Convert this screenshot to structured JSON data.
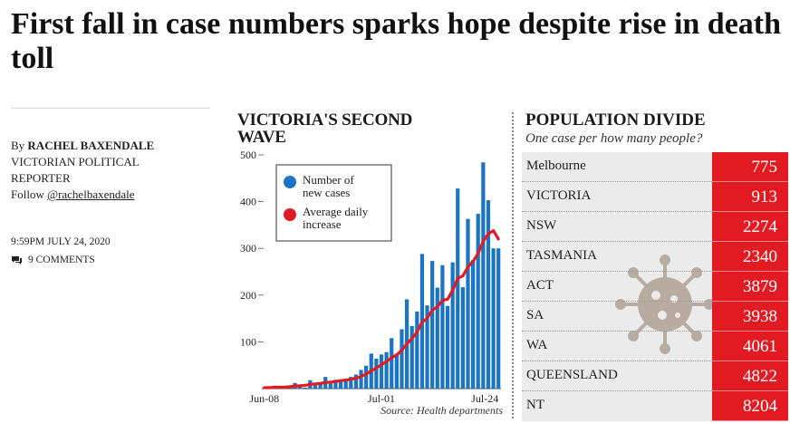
{
  "article": {
    "headline": "First fall in case numbers sparks hope despite rise in death toll",
    "by_prefix": "By",
    "author": "RACHEL BAXENDALE",
    "role": "VICTORIAN POLITICAL REPORTER",
    "follow_prefix": "Follow",
    "handle": "@rachelbaxendale",
    "timestamp": "9:59PM JULY 24, 2020",
    "comments": "9 COMMENTS"
  },
  "colors": {
    "bar": "#1b74c5",
    "line": "#e21b23",
    "table_value_bg": "#e21b23",
    "table_bg": "#ebebeb"
  },
  "chart_data": {
    "type": "bar",
    "title": "VICTORIA'S SECOND WAVE",
    "source": "Source: Health departments",
    "ylim": [
      0,
      500
    ],
    "yticks": [
      100,
      200,
      300,
      400,
      500
    ],
    "x_tick_labels": [
      "Jun-08",
      "Jul-01",
      "Jul-24"
    ],
    "x": [
      "Jun-08",
      "Jun-09",
      "Jun-10",
      "Jun-11",
      "Jun-12",
      "Jun-13",
      "Jun-14",
      "Jun-15",
      "Jun-16",
      "Jun-17",
      "Jun-18",
      "Jun-19",
      "Jun-20",
      "Jun-21",
      "Jun-22",
      "Jun-23",
      "Jun-24",
      "Jun-25",
      "Jun-26",
      "Jun-27",
      "Jun-28",
      "Jun-29",
      "Jun-30",
      "Jul-01",
      "Jul-02",
      "Jul-03",
      "Jul-04",
      "Jul-05",
      "Jul-06",
      "Jul-07",
      "Jul-08",
      "Jul-09",
      "Jul-10",
      "Jul-11",
      "Jul-12",
      "Jul-13",
      "Jul-14",
      "Jul-15",
      "Jul-16",
      "Jul-17",
      "Jul-18",
      "Jul-19",
      "Jul-20",
      "Jul-21",
      "Jul-22",
      "Jul-23",
      "Jul-24"
    ],
    "series": [
      {
        "name": "Number of new cases",
        "type": "bar",
        "values": [
          2,
          4,
          1,
          1,
          2,
          4,
          12,
          4,
          2,
          18,
          12,
          13,
          25,
          16,
          19,
          18,
          21,
          25,
          30,
          40,
          49,
          75,
          64,
          73,
          78,
          108,
          74,
          127,
          191,
          134,
          165,
          288,
          178,
          273,
          216,
          264,
          177,
          270,
          428,
          217,
          363,
          275,
          374,
          484,
          403,
          300,
          300
        ]
      },
      {
        "name": "Average daily increase",
        "type": "line",
        "values": [
          2,
          2,
          3,
          3,
          3,
          4,
          5,
          6,
          7,
          9,
          10,
          11,
          13,
          14,
          15,
          17,
          18,
          20,
          22,
          26,
          31,
          38,
          44,
          51,
          58,
          66,
          72,
          82,
          96,
          107,
          121,
          142,
          151,
          168,
          175,
          189,
          191,
          210,
          236,
          241,
          260,
          272,
          289,
          315,
          331,
          338,
          320
        ]
      }
    ],
    "legend": "top-left"
  },
  "population": {
    "title": "POPULATION DIVIDE",
    "subtitle": "One case per how many people?",
    "rows": [
      {
        "name": "Melbourne",
        "value": "775"
      },
      {
        "name": "VICTORIA",
        "value": "913"
      },
      {
        "name": "NSW",
        "value": "2274"
      },
      {
        "name": "TASMANIA",
        "value": "2340"
      },
      {
        "name": "ACT",
        "value": "3879"
      },
      {
        "name": "SA",
        "value": "3938"
      },
      {
        "name": "WA",
        "value": "4061"
      },
      {
        "name": "QUEENSLAND",
        "value": "4822"
      },
      {
        "name": "NT",
        "value": "8204"
      }
    ]
  }
}
